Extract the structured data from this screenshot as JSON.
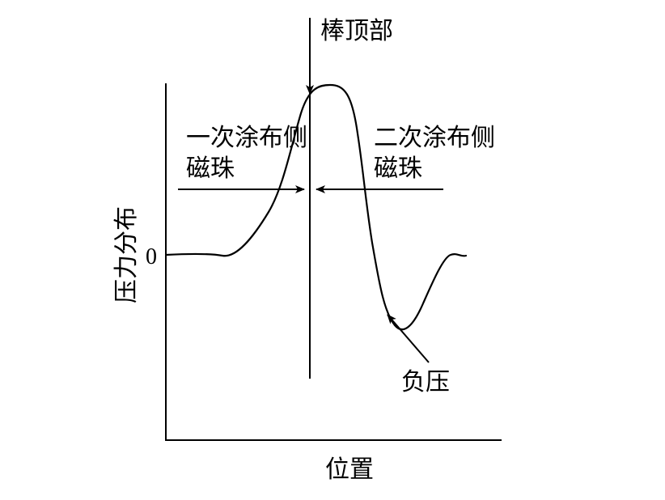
{
  "labels": {
    "rod_top": "棒顶部",
    "first_coat_line1": "一次涂布侧",
    "first_coat_line2": "磁珠",
    "second_coat_line1": "二次涂布侧",
    "second_coat_line2": "磁珠",
    "negative_pressure": "负压",
    "y_axis": "压力分布",
    "x_axis": "位置",
    "zero_tick": "0"
  },
  "colors": {
    "ink": "#000000",
    "background": "#ffffff"
  }
}
